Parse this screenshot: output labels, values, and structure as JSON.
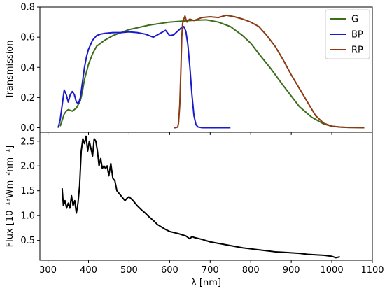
{
  "chart_data": [
    {
      "type": "line",
      "xlabel": "",
      "ylabel": "Transmission",
      "xlim": [
        280,
        1100
      ],
      "ylim": [
        -0.03,
        0.8
      ],
      "x_ticks": [
        300,
        400,
        500,
        600,
        700,
        800,
        900,
        1000,
        1100
      ],
      "y_ticks": [
        0.0,
        0.2,
        0.4,
        0.6,
        0.8
      ],
      "y_tick_labels": [
        "0.0",
        "0.2",
        "0.4",
        "0.6",
        "0.8"
      ],
      "legend_position": "top-right",
      "series": [
        {
          "name": "G",
          "color": "#3a6e1a",
          "x": [
            330,
            335,
            340,
            345,
            350,
            360,
            370,
            380,
            385,
            390,
            400,
            410,
            420,
            440,
            460,
            480,
            500,
            550,
            600,
            650,
            690,
            700,
            720,
            750,
            780,
            800,
            820,
            850,
            880,
            900,
            920,
            950,
            980,
            1000,
            1020,
            1040,
            1060,
            1080
          ],
          "y": [
            0.01,
            0.05,
            0.09,
            0.11,
            0.12,
            0.11,
            0.13,
            0.18,
            0.24,
            0.32,
            0.42,
            0.49,
            0.54,
            0.58,
            0.61,
            0.63,
            0.65,
            0.68,
            0.7,
            0.71,
            0.715,
            0.71,
            0.7,
            0.67,
            0.61,
            0.56,
            0.49,
            0.39,
            0.28,
            0.21,
            0.14,
            0.07,
            0.025,
            0.01,
            0.004,
            0.002,
            0.001,
            0.0
          ]
        },
        {
          "name": "BP",
          "color": "#1a1acc",
          "x": [
            325,
            330,
            335,
            340,
            345,
            350,
            355,
            360,
            365,
            370,
            375,
            380,
            385,
            390,
            395,
            400,
            410,
            420,
            430,
            440,
            460,
            480,
            500,
            520,
            540,
            560,
            580,
            590,
            600,
            610,
            620,
            630,
            635,
            640,
            645,
            650,
            655,
            660,
            665,
            670,
            680,
            700,
            750
          ],
          "y": [
            0.0,
            0.05,
            0.15,
            0.25,
            0.22,
            0.17,
            0.22,
            0.24,
            0.22,
            0.17,
            0.16,
            0.2,
            0.3,
            0.4,
            0.47,
            0.52,
            0.58,
            0.61,
            0.62,
            0.625,
            0.63,
            0.63,
            0.635,
            0.63,
            0.62,
            0.6,
            0.63,
            0.645,
            0.61,
            0.615,
            0.64,
            0.665,
            0.67,
            0.64,
            0.55,
            0.4,
            0.22,
            0.08,
            0.02,
            0.005,
            0.0,
            0.0,
            0.0
          ]
        },
        {
          "name": "RP",
          "color": "#8b3a14",
          "x": [
            610,
            615,
            620,
            622,
            625,
            628,
            630,
            632,
            635,
            638,
            640,
            643,
            645,
            650,
            660,
            680,
            700,
            720,
            740,
            760,
            780,
            800,
            820,
            840,
            860,
            880,
            900,
            920,
            940,
            960,
            980,
            1000,
            1020,
            1040,
            1060,
            1080
          ],
          "y": [
            0.0,
            0.0,
            0.005,
            0.03,
            0.15,
            0.4,
            0.6,
            0.69,
            0.72,
            0.74,
            0.72,
            0.7,
            0.71,
            0.72,
            0.71,
            0.73,
            0.735,
            0.73,
            0.745,
            0.735,
            0.72,
            0.7,
            0.67,
            0.61,
            0.54,
            0.45,
            0.35,
            0.26,
            0.17,
            0.08,
            0.03,
            0.01,
            0.005,
            0.002,
            0.001,
            0.0
          ]
        }
      ]
    },
    {
      "type": "line",
      "xlabel": "λ [nm]",
      "ylabel": "Flux [10⁻¹³Wm⁻²nm⁻¹]",
      "xlim": [
        280,
        1100
      ],
      "ylim": [
        0.1,
        2.68
      ],
      "x_ticks": [
        300,
        400,
        500,
        600,
        700,
        800,
        900,
        1000,
        1100
      ],
      "x_tick_labels": [
        "300",
        "400",
        "500",
        "600",
        "700",
        "800",
        "900",
        "1000",
        "1100"
      ],
      "y_ticks": [
        0.5,
        1.0,
        1.5,
        2.0,
        2.5
      ],
      "y_tick_labels": [
        "0.5",
        "1.0",
        "1.5",
        "2.0",
        "2.5"
      ],
      "series": [
        {
          "color": "#000000",
          "x": [
            335,
            338,
            342,
            346,
            350,
            354,
            358,
            362,
            366,
            370,
            374,
            378,
            382,
            386,
            390,
            394,
            398,
            402,
            406,
            410,
            414,
            418,
            422,
            426,
            430,
            434,
            438,
            442,
            446,
            450,
            455,
            460,
            465,
            470,
            475,
            480,
            485,
            490,
            495,
            500,
            510,
            520,
            530,
            540,
            550,
            560,
            570,
            580,
            590,
            600,
            620,
            640,
            650,
            655,
            660,
            680,
            700,
            720,
            740,
            760,
            780,
            800,
            820,
            840,
            860,
            880,
            900,
            920,
            940,
            960,
            980,
            1000,
            1010,
            1020
          ],
          "y": [
            1.55,
            1.2,
            1.3,
            1.15,
            1.25,
            1.15,
            1.4,
            1.2,
            1.3,
            1.05,
            1.25,
            1.6,
            2.3,
            2.55,
            2.45,
            2.6,
            2.3,
            2.5,
            2.35,
            2.2,
            2.55,
            2.5,
            2.3,
            2.0,
            2.15,
            1.95,
            2.0,
            1.95,
            2.0,
            1.8,
            2.05,
            1.75,
            1.7,
            1.5,
            1.45,
            1.4,
            1.35,
            1.3,
            1.35,
            1.38,
            1.3,
            1.2,
            1.12,
            1.05,
            0.97,
            0.9,
            0.82,
            0.77,
            0.72,
            0.68,
            0.64,
            0.59,
            0.53,
            0.58,
            0.56,
            0.52,
            0.47,
            0.44,
            0.41,
            0.38,
            0.35,
            0.33,
            0.31,
            0.29,
            0.27,
            0.26,
            0.25,
            0.24,
            0.22,
            0.21,
            0.2,
            0.18,
            0.15,
            0.17
          ]
        }
      ]
    }
  ]
}
